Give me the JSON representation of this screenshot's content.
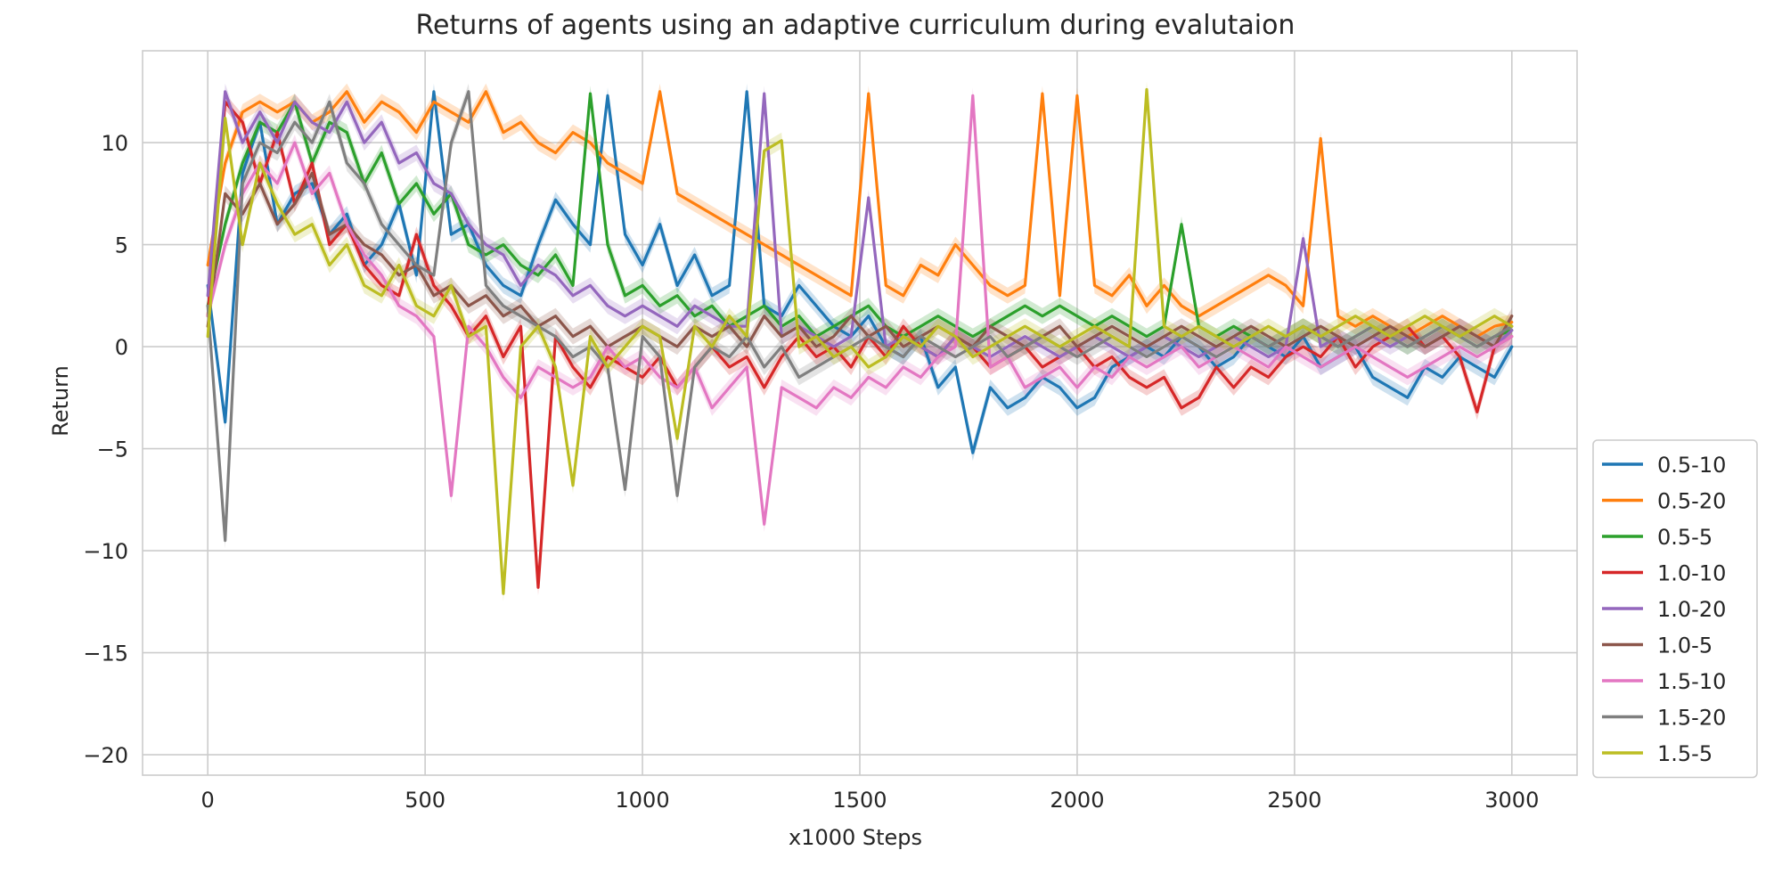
{
  "chart_data": {
    "type": "line",
    "title": "Returns of agents using an adaptive curriculum during evalutaion",
    "xlabel": "x1000 Steps",
    "ylabel": "Return",
    "xlim": [
      -150,
      3150
    ],
    "ylim": [
      -21,
      14.5
    ],
    "xticks": [
      0,
      500,
      1000,
      1500,
      2000,
      2500,
      3000
    ],
    "xtick_labels": [
      "0",
      "500",
      "1000",
      "1500",
      "2000",
      "2500",
      "3000"
    ],
    "yticks": [
      -20,
      -15,
      -10,
      -5,
      0,
      5,
      10
    ],
    "ytick_labels": [
      "−20",
      "−15",
      "−10",
      "−5",
      "0",
      "5",
      "10"
    ],
    "grid": true,
    "legend_position": "lower-right-outside",
    "x": [
      0,
      40,
      80,
      120,
      160,
      200,
      240,
      280,
      320,
      360,
      400,
      440,
      480,
      520,
      560,
      600,
      640,
      680,
      720,
      760,
      800,
      840,
      880,
      920,
      960,
      1000,
      1040,
      1080,
      1120,
      1160,
      1200,
      1240,
      1280,
      1320,
      1360,
      1400,
      1440,
      1480,
      1520,
      1560,
      1600,
      1640,
      1680,
      1720,
      1760,
      1800,
      1840,
      1880,
      1920,
      1960,
      2000,
      2040,
      2080,
      2120,
      2160,
      2200,
      2240,
      2280,
      2320,
      2360,
      2400,
      2440,
      2480,
      2520,
      2560,
      2600,
      2640,
      2680,
      2720,
      2760,
      2800,
      2840,
      2880,
      2920,
      2960,
      3000
    ],
    "series": [
      {
        "name": "0.5-10",
        "color": "#1f77b4",
        "values": [
          3.0,
          -3.7,
          8.5,
          11.0,
          6.0,
          7.5,
          8.0,
          5.5,
          6.5,
          4.0,
          5.0,
          7.0,
          3.5,
          12.5,
          5.5,
          6.0,
          4.0,
          3.0,
          2.5,
          5.0,
          7.2,
          6.0,
          5.0,
          12.3,
          5.5,
          4.0,
          6.0,
          3.0,
          4.5,
          2.5,
          3.0,
          12.5,
          2.0,
          1.5,
          3.0,
          2.0,
          1.0,
          0.5,
          1.5,
          0.0,
          -0.5,
          0.5,
          -2.0,
          -1.0,
          -5.2,
          -2.0,
          -3.0,
          -2.5,
          -1.5,
          -2.0,
          -3.0,
          -2.5,
          -1.0,
          -0.5,
          0.0,
          -0.5,
          0.5,
          0.0,
          -1.0,
          -0.5,
          0.5,
          0.0,
          -0.5,
          0.5,
          -1.0,
          -0.5,
          0.0,
          -1.5,
          -2.0,
          -2.5,
          -1.0,
          -1.5,
          -0.5,
          -1.0,
          -1.5,
          0.0
        ]
      },
      {
        "name": "0.5-20",
        "color": "#ff7f0e",
        "values": [
          4.0,
          9.0,
          11.5,
          12.0,
          11.5,
          12.0,
          11.0,
          11.5,
          12.5,
          11.0,
          12.0,
          11.5,
          10.5,
          12.0,
          11.5,
          11.0,
          12.5,
          10.5,
          11.0,
          10.0,
          9.5,
          10.5,
          10.0,
          9.0,
          8.5,
          8.0,
          12.5,
          7.5,
          7.0,
          6.5,
          6.0,
          5.5,
          5.0,
          4.5,
          4.0,
          3.5,
          3.0,
          2.5,
          12.4,
          3.0,
          2.5,
          4.0,
          3.5,
          5.0,
          4.0,
          3.0,
          2.5,
          3.0,
          12.4,
          2.5,
          12.3,
          3.0,
          2.5,
          3.5,
          2.0,
          3.0,
          2.0,
          1.5,
          2.0,
          2.5,
          3.0,
          3.5,
          3.0,
          2.0,
          10.2,
          1.5,
          1.0,
          1.5,
          1.0,
          0.5,
          1.0,
          1.5,
          1.0,
          0.5,
          1.0,
          1.2
        ]
      },
      {
        "name": "0.5-5",
        "color": "#2ca02c",
        "values": [
          2.0,
          6.0,
          9.0,
          11.0,
          10.5,
          12.0,
          9.0,
          11.0,
          10.5,
          8.0,
          9.5,
          7.0,
          8.0,
          6.5,
          7.5,
          5.0,
          4.5,
          5.0,
          4.0,
          3.5,
          4.5,
          3.0,
          12.4,
          5.0,
          2.5,
          3.0,
          2.0,
          2.5,
          1.5,
          2.0,
          1.0,
          1.5,
          2.0,
          1.0,
          1.5,
          0.5,
          1.0,
          1.5,
          2.0,
          1.0,
          0.5,
          1.0,
          1.5,
          1.0,
          0.5,
          1.0,
          1.5,
          2.0,
          1.5,
          2.0,
          1.5,
          1.0,
          1.5,
          1.0,
          0.5,
          1.0,
          6.0,
          1.0,
          0.5,
          1.0,
          0.5,
          0.0,
          0.5,
          1.0,
          0.5,
          0.0,
          0.5,
          1.0,
          0.5,
          0.0,
          0.5,
          1.0,
          0.5,
          0.0,
          0.5,
          0.8
        ]
      },
      {
        "name": "1.0-10",
        "color": "#d62728",
        "values": [
          1.5,
          12.0,
          11.0,
          8.0,
          10.5,
          7.0,
          9.0,
          5.0,
          6.0,
          4.0,
          3.0,
          2.5,
          5.5,
          3.0,
          2.0,
          0.5,
          1.5,
          -0.5,
          1.0,
          -11.8,
          0.5,
          -1.0,
          -2.0,
          -0.5,
          -1.0,
          -1.5,
          -0.5,
          -2.0,
          -1.0,
          0.0,
          -1.0,
          -0.5,
          -2.0,
          -0.5,
          0.5,
          -0.5,
          0.0,
          -1.0,
          0.5,
          -0.5,
          1.0,
          0.0,
          -0.5,
          0.5,
          0.0,
          -1.0,
          -0.5,
          0.0,
          -1.0,
          -0.5,
          0.0,
          -1.0,
          -0.5,
          -1.5,
          -2.0,
          -1.5,
          -3.0,
          -2.5,
          -1.0,
          -2.0,
          -1.0,
          -1.5,
          -0.5,
          0.0,
          -0.5,
          0.5,
          -1.0,
          0.0,
          0.5,
          1.0,
          0.0,
          0.5,
          -0.5,
          -3.2,
          0.0,
          0.5
        ]
      },
      {
        "name": "1.0-20",
        "color": "#9467bd",
        "values": [
          2.5,
          12.5,
          10.0,
          11.5,
          10.0,
          12.0,
          11.0,
          10.5,
          12.0,
          10.0,
          11.0,
          9.0,
          9.5,
          8.0,
          7.5,
          6.0,
          5.0,
          4.5,
          3.0,
          4.0,
          3.5,
          2.5,
          3.0,
          2.0,
          1.5,
          2.0,
          1.5,
          1.0,
          2.0,
          1.5,
          1.0,
          1.0,
          12.4,
          0.5,
          1.0,
          0.5,
          0.0,
          0.5,
          7.3,
          0.0,
          0.5,
          0.0,
          -0.5,
          0.5,
          0.0,
          -0.5,
          0.0,
          0.5,
          0.0,
          -0.5,
          0.0,
          0.5,
          0.0,
          -0.5,
          0.0,
          0.5,
          0.0,
          -0.5,
          0.0,
          0.5,
          0.0,
          -0.5,
          0.0,
          5.3,
          0.0,
          0.5,
          0.0,
          0.5,
          0.0,
          0.5,
          0.0,
          0.5,
          1.0,
          0.5,
          0.0,
          0.8
        ]
      },
      {
        "name": "1.0-5",
        "color": "#8c564b",
        "values": [
          1.0,
          7.5,
          6.5,
          8.0,
          6.0,
          7.0,
          8.5,
          5.5,
          6.0,
          5.0,
          4.5,
          3.5,
          4.0,
          2.5,
          3.0,
          2.0,
          2.5,
          1.5,
          2.0,
          1.0,
          1.5,
          0.5,
          1.0,
          0.0,
          0.5,
          1.0,
          0.5,
          0.0,
          1.0,
          0.5,
          1.0,
          0.0,
          1.5,
          0.5,
          1.0,
          0.0,
          0.5,
          1.5,
          0.5,
          1.0,
          0.0,
          0.5,
          1.0,
          0.5,
          0.0,
          1.0,
          0.5,
          0.0,
          0.5,
          1.0,
          0.0,
          0.5,
          1.0,
          0.5,
          0.0,
          0.5,
          1.0,
          0.5,
          0.0,
          0.5,
          1.0,
          0.5,
          0.0,
          0.5,
          1.0,
          0.5,
          0.0,
          0.5,
          1.0,
          0.5,
          0.0,
          0.5,
          1.0,
          0.5,
          0.0,
          1.5
        ]
      },
      {
        "name": "1.5-10",
        "color": "#e377c2",
        "values": [
          1.5,
          5.0,
          7.5,
          9.0,
          8.0,
          10.0,
          7.5,
          8.5,
          6.0,
          4.5,
          3.5,
          2.0,
          1.5,
          0.5,
          -7.3,
          1.0,
          0.0,
          -1.5,
          -2.5,
          -1.0,
          -1.5,
          -2.0,
          -1.5,
          0.0,
          -1.0,
          -0.5,
          -1.5,
          -2.0,
          -1.0,
          -3.0,
          -2.0,
          -1.0,
          -8.7,
          -2.0,
          -2.5,
          -3.0,
          -2.0,
          -2.5,
          -1.5,
          -2.0,
          -1.0,
          -1.5,
          -0.5,
          0.0,
          12.3,
          -1.0,
          -0.5,
          -2.0,
          -1.5,
          -1.0,
          -2.0,
          -1.0,
          -1.5,
          -0.5,
          -1.0,
          -0.5,
          0.0,
          -1.0,
          -0.5,
          0.0,
          -0.5,
          -1.0,
          0.0,
          -0.5,
          -1.0,
          -0.5,
          0.0,
          -0.5,
          -1.0,
          -1.5,
          -1.0,
          -0.5,
          0.0,
          -0.5,
          0.0,
          0.5
        ]
      },
      {
        "name": "1.5-20",
        "color": "#7f7f7f",
        "values": [
          2.0,
          -9.5,
          8.0,
          10.0,
          9.5,
          11.0,
          10.0,
          12.0,
          9.0,
          8.0,
          6.0,
          5.0,
          4.0,
          3.5,
          10.0,
          12.5,
          3.0,
          2.0,
          1.5,
          1.0,
          0.5,
          -0.5,
          0.0,
          -1.0,
          -7.0,
          0.5,
          -0.5,
          -7.3,
          -1.0,
          0.0,
          -0.5,
          0.5,
          -1.0,
          0.0,
          -1.5,
          -1.0,
          -0.5,
          0.0,
          0.5,
          0.0,
          -0.5,
          0.5,
          0.0,
          -0.5,
          0.0,
          0.5,
          -0.5,
          0.0,
          0.5,
          0.0,
          -0.5,
          0.0,
          0.5,
          0.0,
          -0.5,
          0.0,
          0.5,
          0.0,
          -0.5,
          0.0,
          0.5,
          0.0,
          0.5,
          1.0,
          0.5,
          0.0,
          0.5,
          1.0,
          0.5,
          0.0,
          0.5,
          1.0,
          0.5,
          0.0,
          0.5,
          1.0
        ]
      },
      {
        "name": "1.5-5",
        "color": "#bcbd22",
        "values": [
          0.5,
          11.2,
          5.0,
          9.0,
          7.0,
          5.5,
          6.0,
          4.0,
          5.0,
          3.0,
          2.5,
          4.0,
          2.0,
          1.5,
          3.0,
          0.5,
          1.0,
          -12.1,
          0.0,
          1.0,
          -1.0,
          -6.8,
          0.5,
          -1.0,
          0.0,
          1.0,
          0.5,
          -4.5,
          1.0,
          0.0,
          1.5,
          0.5,
          9.6,
          10.1,
          0.0,
          0.5,
          -0.5,
          0.0,
          -1.0,
          -0.5,
          0.5,
          0.0,
          1.0,
          0.5,
          -0.5,
          0.0,
          0.5,
          1.0,
          0.5,
          0.0,
          0.5,
          1.0,
          0.5,
          0.0,
          12.6,
          1.0,
          0.5,
          1.0,
          0.5,
          0.0,
          0.5,
          1.0,
          0.5,
          1.0,
          0.5,
          1.0,
          1.5,
          1.0,
          0.5,
          1.0,
          1.5,
          1.0,
          0.5,
          1.0,
          1.5,
          1.0
        ]
      }
    ]
  }
}
